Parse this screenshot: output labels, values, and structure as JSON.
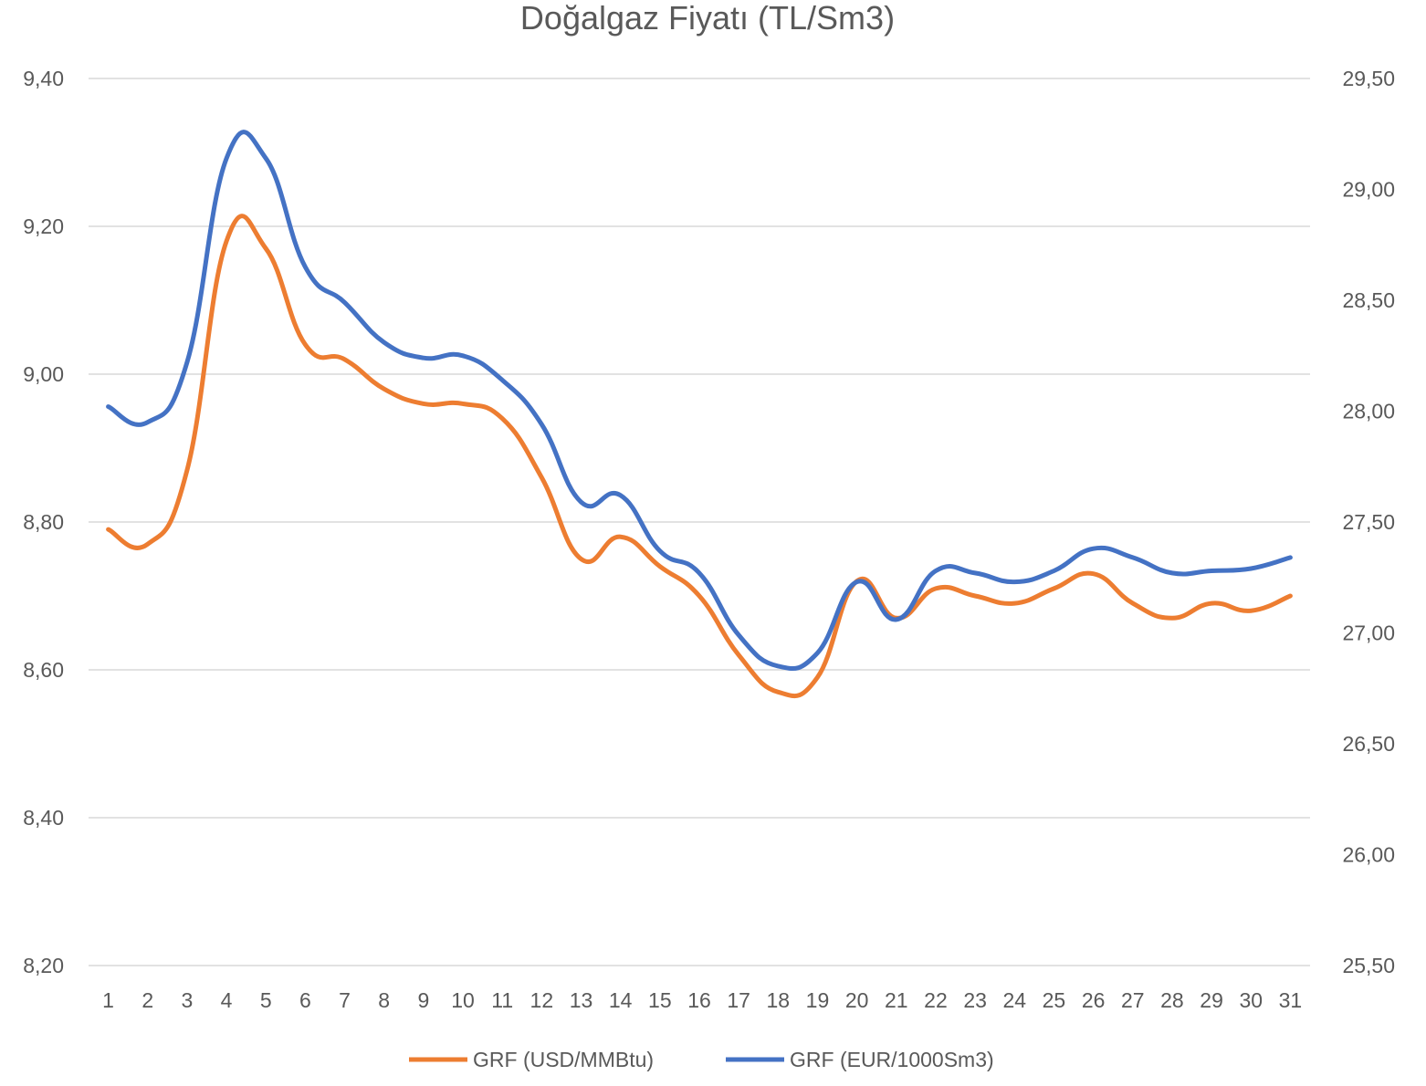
{
  "chart_data": {
    "type": "line",
    "title": "Doğalgaz Fiyatı (TL/Sm3)",
    "xlabel": "",
    "ylabel": "",
    "categories": [
      "1",
      "2",
      "3",
      "4",
      "5",
      "6",
      "7",
      "8",
      "9",
      "10",
      "11",
      "12",
      "13",
      "14",
      "15",
      "16",
      "17",
      "18",
      "19",
      "20",
      "21",
      "22",
      "23",
      "24",
      "25",
      "26",
      "27",
      "28",
      "29",
      "30",
      "31"
    ],
    "y_left": {
      "ylim": [
        8.2,
        9.4
      ],
      "ticks": [
        8.2,
        8.4,
        8.6,
        8.8,
        9.0,
        9.2,
        9.4
      ],
      "tick_labels": [
        "8,20",
        "8,40",
        "8,60",
        "8,80",
        "9,00",
        "9,20",
        "9,40"
      ]
    },
    "y_right": {
      "ylim": [
        25.5,
        29.5
      ],
      "ticks": [
        25.5,
        26.0,
        26.5,
        27.0,
        27.5,
        28.0,
        28.5,
        29.0,
        29.5
      ],
      "tick_labels": [
        "25,50",
        "26,00",
        "26,50",
        "27,00",
        "27,50",
        "28,00",
        "28,50",
        "29,00",
        "29,50"
      ]
    },
    "grid": true,
    "legend_position": "bottom",
    "series": [
      {
        "name": "GRF (USD/MMBtu)",
        "axis": "left",
        "color": "#ED7D31",
        "values": [
          8.79,
          8.77,
          8.87,
          9.18,
          9.17,
          9.04,
          9.02,
          8.98,
          8.96,
          8.96,
          8.94,
          8.86,
          8.75,
          8.78,
          8.74,
          8.7,
          8.62,
          8.57,
          8.59,
          8.72,
          8.67,
          8.71,
          8.7,
          8.69,
          8.71,
          8.73,
          8.69,
          8.67,
          8.69,
          8.68,
          8.7
        ]
      },
      {
        "name": "GRF (EUR/1000Sm3)",
        "axis": "right",
        "color": "#4472C4",
        "values": [
          28.02,
          27.95,
          28.22,
          29.14,
          29.14,
          28.65,
          28.49,
          28.31,
          28.24,
          28.25,
          28.14,
          27.94,
          27.59,
          27.62,
          27.37,
          27.27,
          26.99,
          26.85,
          26.91,
          27.23,
          27.06,
          27.28,
          27.27,
          27.23,
          27.28,
          27.38,
          27.34,
          27.27,
          27.28,
          27.29,
          27.34
        ]
      }
    ]
  }
}
